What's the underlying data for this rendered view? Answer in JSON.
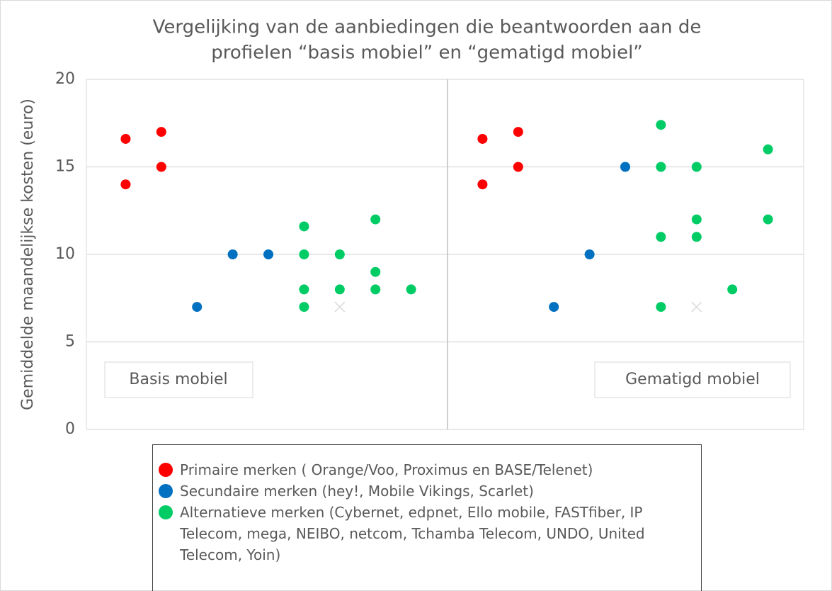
{
  "chart_data": {
    "type": "scatter",
    "title": [
      "Vergelijking van de aanbiedingen die beantwoorden aan de",
      "profielen “basis mobiel” en “gematigd mobiel”"
    ],
    "y_label": "Gemiddelde maandelijkse kosten (euro)",
    "panel_labels": [
      "Basis mobiel",
      "Gematigd mobiel"
    ],
    "xlim": [
      -0.1,
      20
    ],
    "ylim": [
      0,
      20
    ],
    "yticks": [
      0,
      5,
      10,
      15,
      20
    ],
    "grid": true,
    "series": [
      {
        "name": "Primaire merken ( Orange/Voo, Proximus en BASE/Telenet)",
        "color": "#ff0000",
        "x": [
          1,
          1,
          2,
          2,
          11,
          11,
          12,
          12
        ],
        "values": [
          16.6,
          14,
          17,
          15,
          16.6,
          14,
          17,
          15
        ]
      },
      {
        "name": "Secundaire merken (hey!, Mobile Vikings, Scarlet)",
        "color": "#0070c0",
        "x": [
          3,
          4,
          5,
          13,
          14,
          15
        ],
        "values": [
          7,
          10,
          10,
          7,
          10,
          15
        ]
      },
      {
        "name": "Alternatieve merken (Cybernet, edpnet, Ello mobile, FASTfiber, IP Telecom, mega, NEIBO, netcom, Tchamba Telecom, UNDO, United Telecom, Yoin)",
        "color": "#00cc66",
        "x": [
          6,
          6,
          6,
          6,
          7,
          7,
          8,
          8,
          8,
          9,
          16,
          16,
          16,
          16,
          17,
          17,
          17,
          18,
          19,
          19
        ],
        "values": [
          11.6,
          10,
          8,
          7,
          10,
          8,
          12,
          9,
          8,
          8,
          17.4,
          15,
          11,
          7,
          15,
          12,
          11,
          8,
          16,
          12
        ]
      },
      {
        "color": "#d9d9d9",
        "marker": "x",
        "x": [
          7,
          17
        ],
        "values": [
          7,
          7
        ]
      }
    ]
  }
}
